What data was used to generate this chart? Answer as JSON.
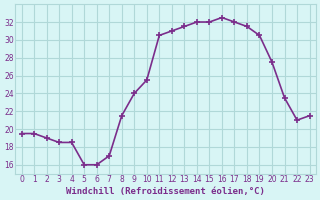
{
  "x": [
    0,
    1,
    2,
    3,
    4,
    5,
    6,
    7,
    8,
    9,
    10,
    11,
    12,
    13,
    14,
    15,
    16,
    17,
    18,
    19,
    20,
    21,
    22,
    23
  ],
  "y": [
    19.5,
    19.5,
    19.0,
    18.5,
    18.5,
    16.0,
    16.0,
    17.0,
    21.5,
    24.0,
    25.5,
    30.5,
    31.0,
    31.5,
    32.0,
    32.0,
    32.5,
    32.0,
    31.5,
    30.5,
    27.5,
    23.5,
    21.0,
    21.5
  ],
  "line_color": "#7b2d8b",
  "marker": "+",
  "bg_color": "#d8f5f5",
  "grid_color": "#b0d8d8",
  "xlabel": "Windchill (Refroidissement éolien,°C)",
  "ylim": [
    15,
    34
  ],
  "yticks": [
    16,
    18,
    20,
    22,
    24,
    26,
    28,
    30,
    32
  ],
  "xlim": [
    -0.5,
    23.5
  ],
  "font_color": "#7b2d8b"
}
